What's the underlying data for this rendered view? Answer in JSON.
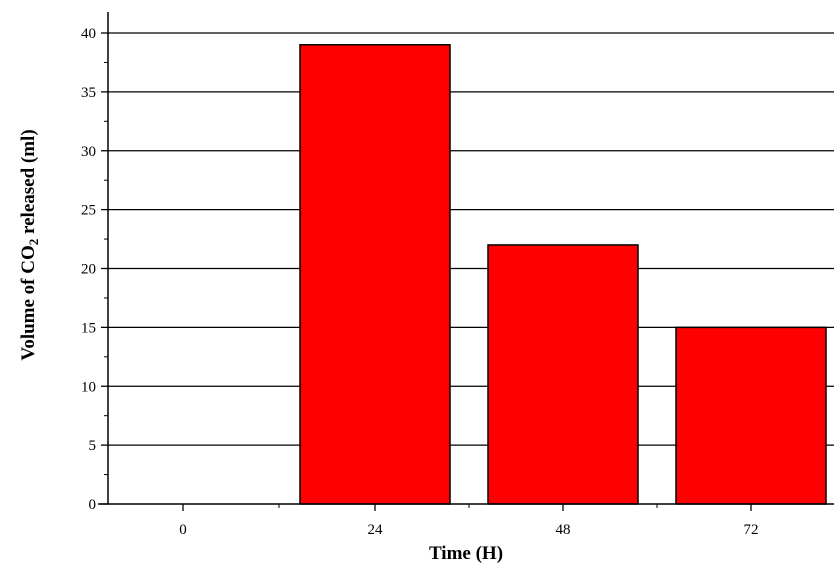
{
  "chart_data": {
    "type": "bar",
    "categories": [
      "0",
      "24",
      "48",
      "72"
    ],
    "values": [
      0,
      39,
      22,
      15
    ],
    "xlabel": "Time (H)",
    "ylabel": {
      "prefix": "Volume of CO",
      "subscript": "2",
      "suffix": " released (ml)"
    },
    "ylim": [
      0,
      40
    ],
    "yticks": [
      0,
      5,
      10,
      15,
      20,
      25,
      30,
      35,
      40
    ],
    "grid": true,
    "bar_color": "#ff0000",
    "bar_edge_color": "#000000"
  }
}
